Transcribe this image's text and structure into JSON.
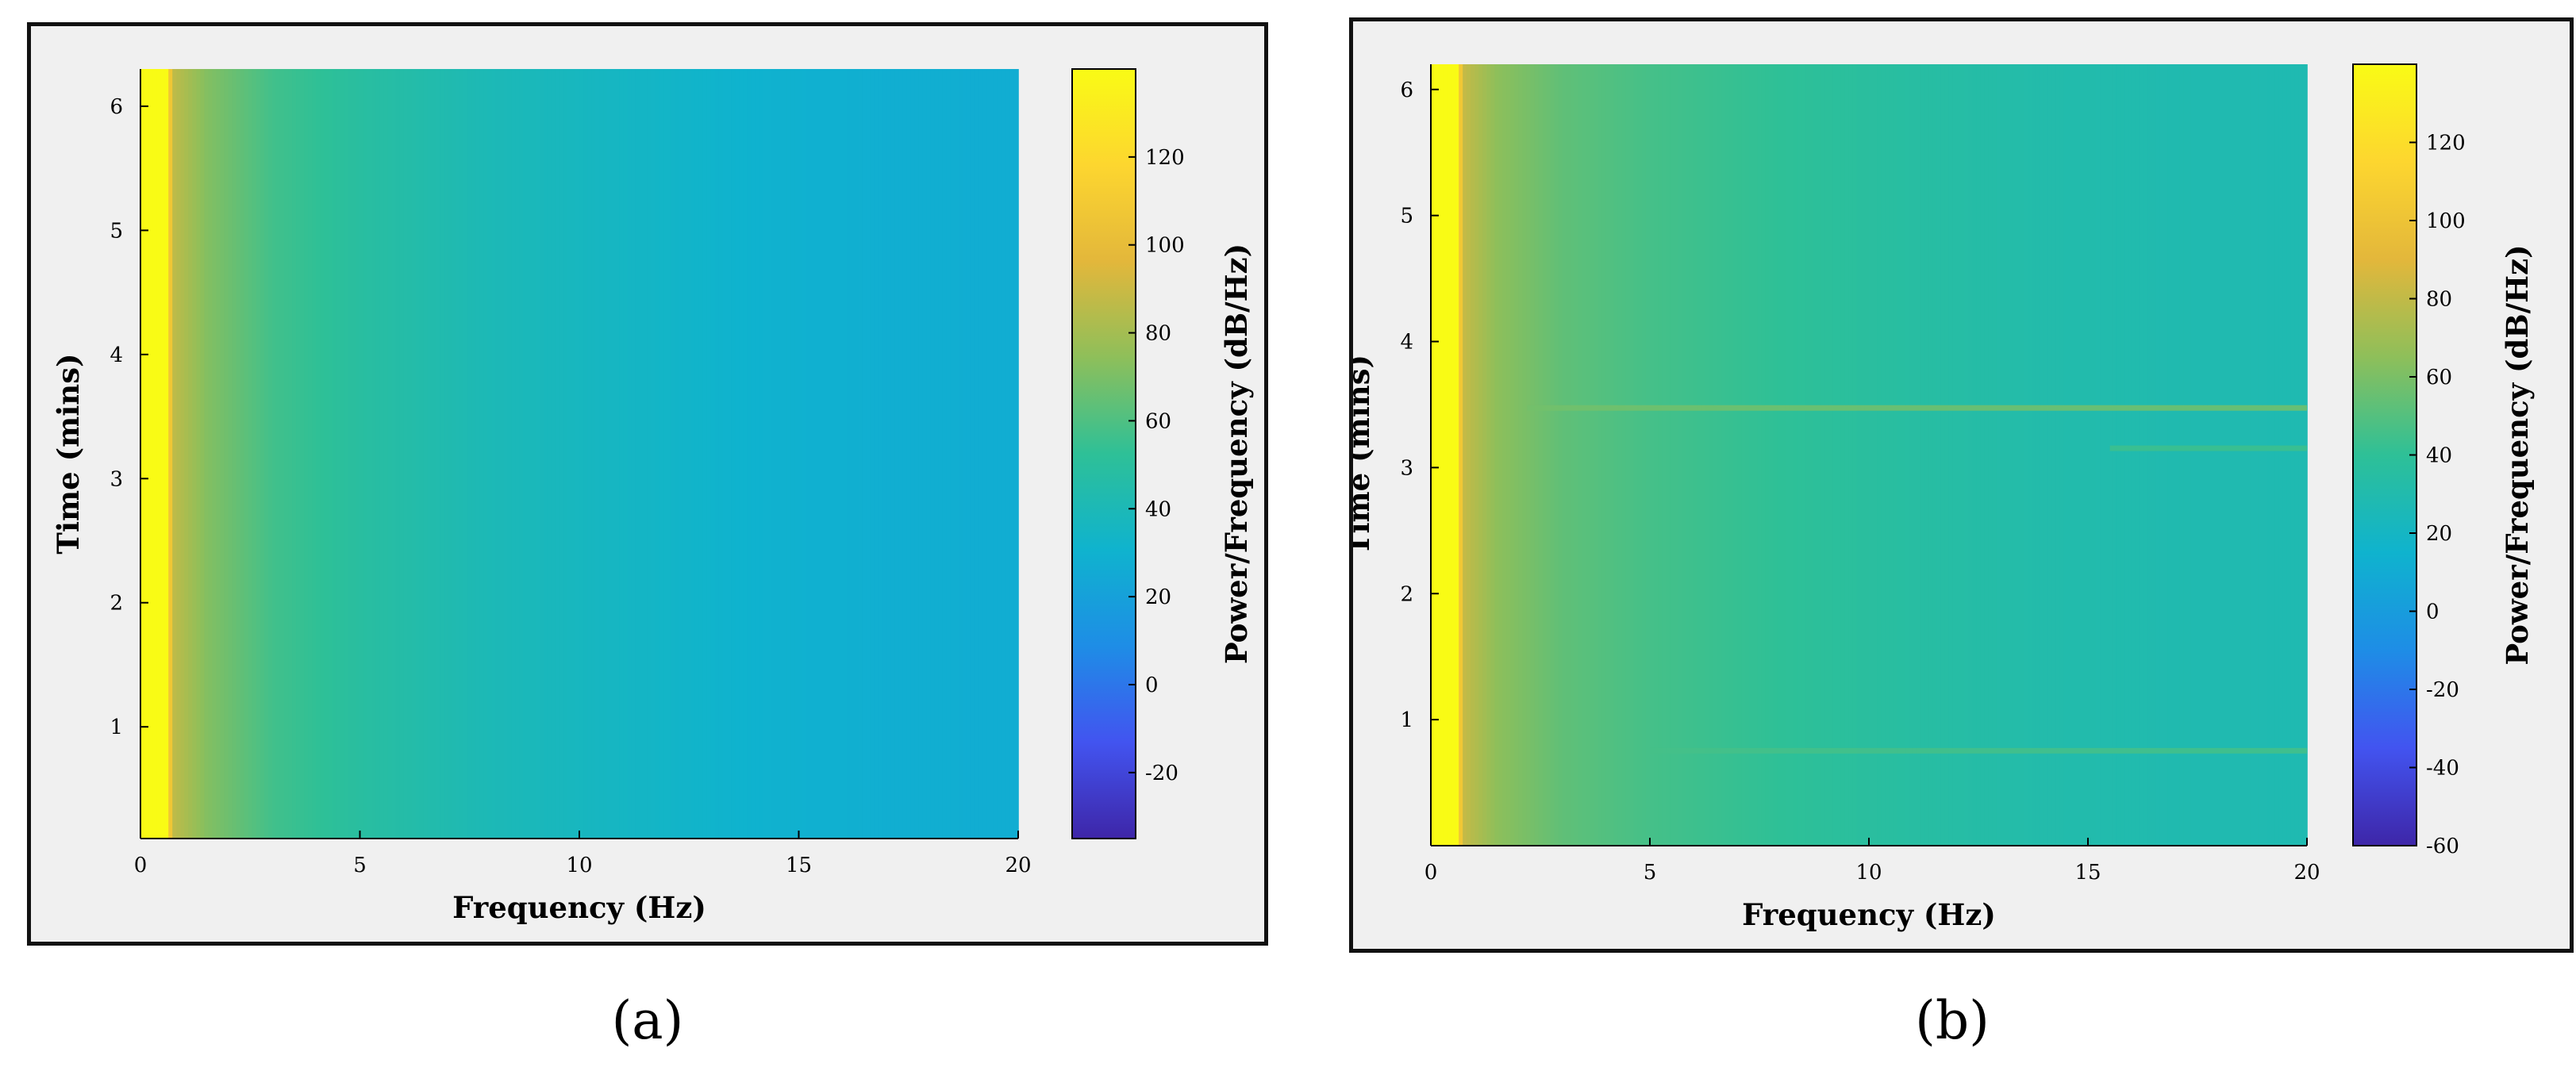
{
  "captions": {
    "a": "(a)",
    "b": "(b)"
  },
  "chart_data": [
    {
      "id": "a",
      "type": "heatmap",
      "xlabel": "Frequency (Hz)",
      "ylabel": "Time (mins)",
      "colorbar_label": "Power/Frequency (dB/Hz)",
      "xlim": [
        0,
        20
      ],
      "ylim": [
        0.1,
        6.3
      ],
      "xticks": [
        0,
        5,
        10,
        15,
        20
      ],
      "yticks": [
        1,
        2,
        3,
        4,
        5,
        6
      ],
      "clim": [
        -35,
        140
      ],
      "cticks": [
        -20,
        0,
        20,
        40,
        60,
        80,
        100,
        120
      ],
      "colormap": [
        "#3e26a8",
        "#4254f0",
        "#1e8de6",
        "#0fb3ce",
        "#2ec097",
        "#8ebf5a",
        "#e3b73b",
        "#fdd62f",
        "#f9fb15"
      ],
      "power_profile": {
        "freq_hz": [
          0,
          0.65,
          0.7,
          1.5,
          3,
          5,
          8,
          11,
          14,
          17,
          20
        ],
        "db": [
          140,
          140,
          88,
          72,
          57,
          49,
          40,
          35,
          30,
          28,
          27
        ]
      },
      "horizontal_lines": []
    },
    {
      "id": "b",
      "type": "heatmap",
      "xlabel": "Frequency (Hz)",
      "ylabel": "Time (mins)",
      "colorbar_label": "Power/Frequency (dB/Hz)",
      "xlim": [
        0,
        20
      ],
      "ylim": [
        0,
        6.2
      ],
      "xticks": [
        0,
        5,
        10,
        15,
        20
      ],
      "yticks": [
        1,
        2,
        3,
        4,
        5,
        6
      ],
      "clim": [
        -60,
        140
      ],
      "cticks": [
        -60,
        -40,
        -20,
        0,
        20,
        40,
        60,
        80,
        100,
        120
      ],
      "colormap": [
        "#3e26a8",
        "#4254f0",
        "#1e8de6",
        "#0fb3ce",
        "#2ec097",
        "#8ebf5a",
        "#e3b73b",
        "#fdd62f",
        "#f9fb15"
      ],
      "power_profile": {
        "freq_hz": [
          0,
          0.65,
          0.7,
          1.5,
          3,
          5,
          8,
          11,
          14,
          17,
          20
        ],
        "db": [
          140,
          140,
          82,
          65,
          53,
          46,
          40,
          35,
          31,
          29,
          28
        ]
      },
      "horizontal_lines": [
        {
          "time_mins": 3.47,
          "freq_from": 2.2,
          "freq_to": 20,
          "db": 58
        },
        {
          "time_mins": 3.15,
          "freq_from": 15.5,
          "freq_to": 20,
          "db": 44
        },
        {
          "time_mins": 0.75,
          "freq_from": 5,
          "freq_to": 20,
          "db": 46
        }
      ]
    }
  ]
}
